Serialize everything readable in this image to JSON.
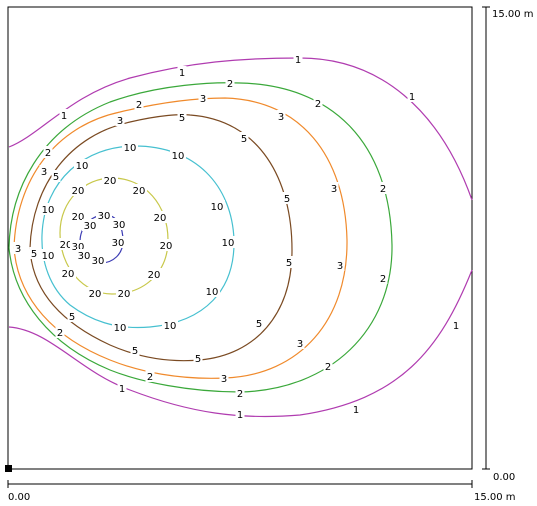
{
  "room": {
    "x_axis": {
      "min_label": "0.00",
      "max_label": "15.00 m"
    },
    "y_axis": {
      "min_label": "0.00",
      "max_label": "15.00 m"
    }
  },
  "contours": [
    {
      "level": "1",
      "color": "#b03cb0"
    },
    {
      "level": "2",
      "color": "#3aa83a"
    },
    {
      "level": "3",
      "color": "#f08a2c"
    },
    {
      "level": "5",
      "color": "#7a4a22"
    },
    {
      "level": "10",
      "color": "#46c0d0"
    },
    {
      "level": "20",
      "color": "#c8c84a"
    },
    {
      "level": "30",
      "color": "#3c3cb4"
    }
  ],
  "marker": {
    "color": "#000000"
  }
}
